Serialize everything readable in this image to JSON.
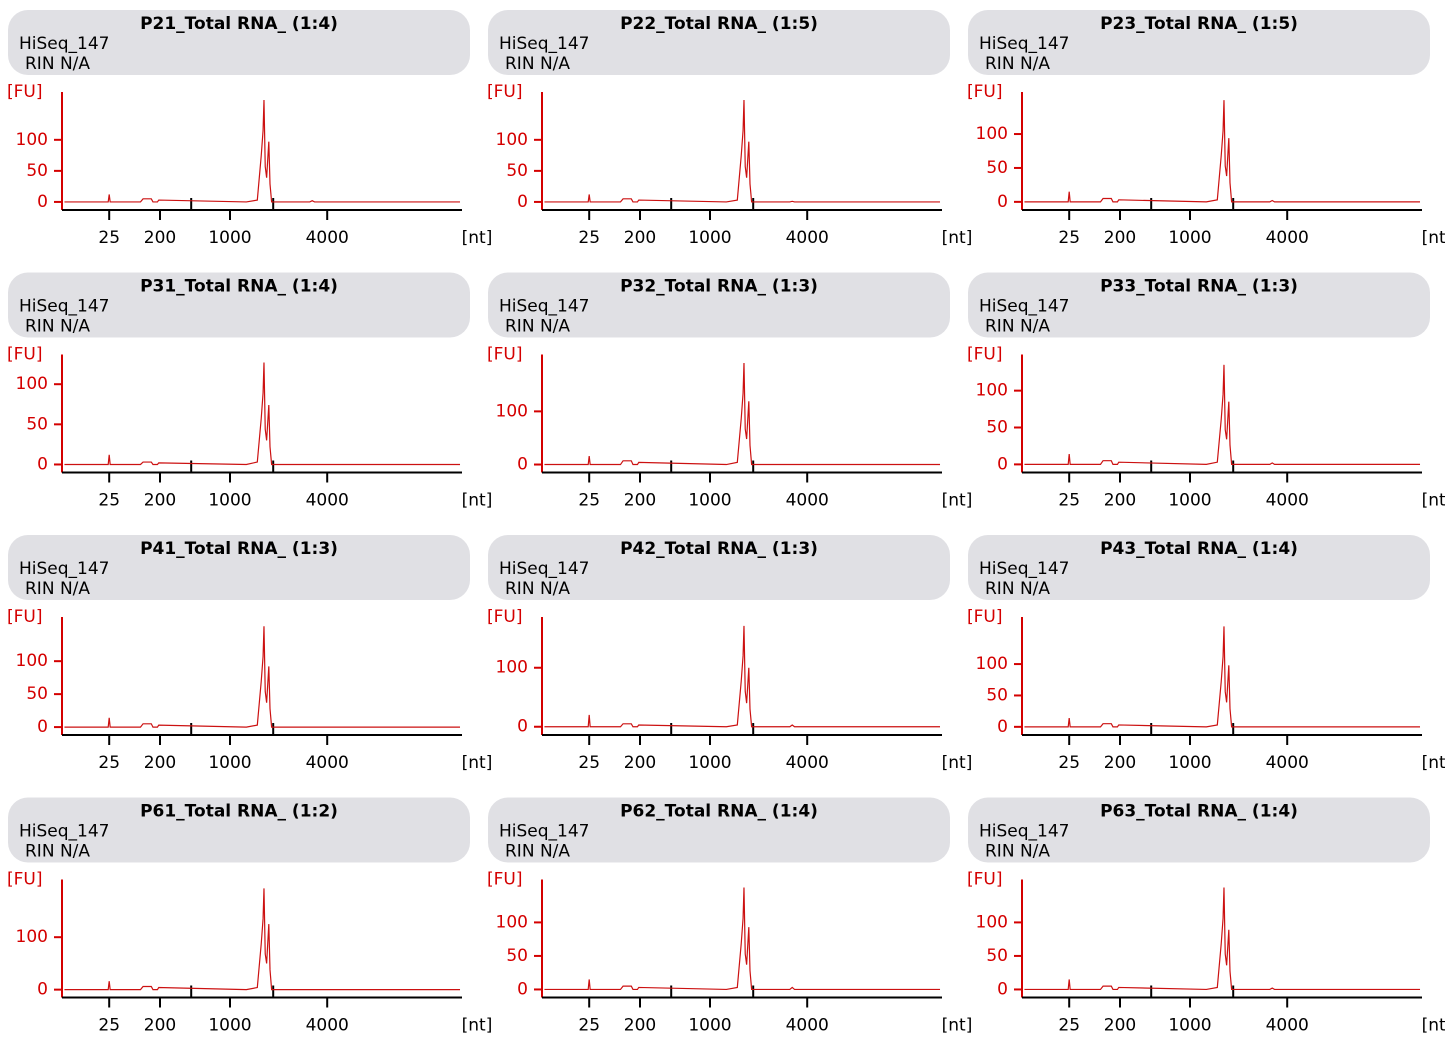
{
  "chart_data": [
    {
      "type": "line",
      "title": "P21_Total RNA_ (1:4)",
      "subtitle": [
        "HiSeq_147",
        "RIN N/A"
      ],
      "ylabel": "[FU]",
      "xlabel": "[nt]",
      "color": "#cc1111",
      "ylim": [
        -13,
        177
      ],
      "yticks": [
        0,
        50,
        100
      ],
      "xticks": [
        25,
        200,
        1000,
        4000
      ],
      "xminor": [
        500,
        2000
      ],
      "x": [
        4,
        24,
        25,
        26,
        90,
        100,
        140,
        150,
        180,
        190,
        1300,
        1550,
        1650,
        1700,
        1725,
        1760,
        1800,
        1864,
        1900,
        1950,
        3200,
        3300,
        3400,
        22000
      ],
      "values": [
        0,
        0,
        12,
        0,
        0,
        5,
        5,
        0,
        0,
        3,
        0,
        3,
        74,
        115,
        164,
        57,
        39,
        97,
        29,
        0,
        0,
        2,
        0,
        0
      ]
    },
    {
      "type": "line",
      "title": "P22_Total RNA_ (1:5)",
      "subtitle": [
        "HiSeq_147",
        "RIN N/A"
      ],
      "ylabel": "[FU]",
      "xlabel": "[nt]",
      "color": "#cc1111",
      "ylim": [
        -13,
        177
      ],
      "yticks": [
        0,
        50,
        100
      ],
      "xticks": [
        25,
        200,
        1000,
        4000
      ],
      "xminor": [
        500,
        2000
      ],
      "x": [
        4,
        24,
        25,
        26,
        90,
        100,
        140,
        150,
        180,
        190,
        1300,
        1550,
        1650,
        1700,
        1725,
        1760,
        1800,
        1864,
        1900,
        1950,
        3200,
        3300,
        3400,
        22000
      ],
      "values": [
        0,
        0,
        12,
        0,
        0,
        5,
        5,
        0,
        0,
        3,
        0,
        3,
        74,
        115,
        164,
        57,
        39,
        97,
        29,
        0,
        0,
        1,
        0,
        0
      ]
    },
    {
      "type": "line",
      "title": "P23_Total RNA_ (1:5)",
      "subtitle": [
        "HiSeq_147",
        "RIN N/A"
      ],
      "ylabel": "[FU]",
      "xlabel": "[nt]",
      "color": "#cc1111",
      "ylim": [
        -12,
        162
      ],
      "yticks": [
        0,
        50,
        100
      ],
      "xticks": [
        25,
        200,
        1000,
        4000
      ],
      "xminor": [
        500,
        2000
      ],
      "x": [
        4,
        24,
        25,
        26,
        90,
        100,
        140,
        150,
        180,
        190,
        1300,
        1550,
        1650,
        1700,
        1725,
        1760,
        1800,
        1864,
        1900,
        1950,
        3200,
        3300,
        3400,
        22000
      ],
      "values": [
        0,
        0,
        15,
        0,
        0,
        5,
        5,
        0,
        0,
        3,
        0,
        3,
        68,
        105,
        150,
        53,
        38,
        94,
        28,
        0,
        0,
        2,
        0,
        0
      ]
    },
    {
      "type": "line",
      "title": "P31_Total RNA_ (1:4)",
      "subtitle": [
        "HiSeq_147",
        "RIN N/A"
      ],
      "ylabel": "[FU]",
      "xlabel": "[nt]",
      "color": "#cc1111",
      "ylim": [
        -10,
        137
      ],
      "yticks": [
        0,
        50,
        100
      ],
      "xticks": [
        25,
        200,
        1000,
        4000
      ],
      "xminor": [
        500,
        2000
      ],
      "x": [
        4,
        24,
        25,
        26,
        90,
        100,
        140,
        150,
        180,
        190,
        1300,
        1550,
        1650,
        1700,
        1725,
        1760,
        1800,
        1864,
        1900,
        1950,
        3200,
        3300,
        3400,
        22000
      ],
      "values": [
        0,
        0,
        12,
        0,
        0,
        3,
        3,
        0,
        0,
        2,
        0,
        3,
        57,
        89,
        127,
        44,
        30,
        74,
        22,
        0,
        0,
        0,
        0,
        0
      ]
    },
    {
      "type": "line",
      "title": "P32_Total RNA_ (1:3)",
      "subtitle": [
        "HiSeq_147",
        "RIN N/A"
      ],
      "ylabel": "[FU]",
      "xlabel": "[nt]",
      "color": "#cc1111",
      "ylim": [
        -15,
        207
      ],
      "yticks": [
        0,
        100
      ],
      "xticks": [
        25,
        200,
        1000,
        4000
      ],
      "xminor": [
        500,
        2000
      ],
      "x": [
        4,
        24,
        25,
        26,
        90,
        100,
        140,
        150,
        180,
        190,
        1300,
        1550,
        1650,
        1700,
        1725,
        1760,
        1800,
        1864,
        1900,
        1950,
        3200,
        3300,
        3400,
        22000
      ],
      "values": [
        0,
        0,
        16,
        0,
        0,
        7,
        7,
        0,
        0,
        4,
        0,
        4,
        86,
        134,
        191,
        67,
        48,
        119,
        36,
        0,
        0,
        0,
        0,
        0
      ]
    },
    {
      "type": "line",
      "title": "P33_Total RNA_ (1:3)",
      "subtitle": [
        "HiSeq_147",
        "RIN N/A"
      ],
      "ylabel": "[FU]",
      "xlabel": "[nt]",
      "color": "#cc1111",
      "ylim": [
        -11,
        149
      ],
      "yticks": [
        0,
        50,
        100
      ],
      "xticks": [
        25,
        200,
        1000,
        4000
      ],
      "xminor": [
        500,
        2000
      ],
      "x": [
        4,
        24,
        25,
        26,
        90,
        100,
        140,
        150,
        180,
        190,
        1300,
        1550,
        1650,
        1700,
        1725,
        1760,
        1800,
        1864,
        1900,
        1950,
        3200,
        3300,
        3400,
        22000
      ],
      "values": [
        0,
        0,
        14,
        0,
        0,
        5,
        5,
        0,
        0,
        3,
        0,
        3,
        61,
        95,
        135,
        47,
        34,
        85,
        26,
        0,
        0,
        2,
        0,
        0
      ]
    },
    {
      "type": "line",
      "title": "P41_Total RNA_ (1:3)",
      "subtitle": [
        "HiSeq_147",
        "RIN N/A"
      ],
      "ylabel": "[FU]",
      "xlabel": "[nt]",
      "color": "#cc1111",
      "ylim": [
        -12,
        167
      ],
      "yticks": [
        0,
        50,
        100
      ],
      "xticks": [
        25,
        200,
        1000,
        4000
      ],
      "xminor": [
        500,
        2000
      ],
      "x": [
        4,
        24,
        25,
        26,
        90,
        100,
        140,
        150,
        180,
        190,
        1300,
        1550,
        1650,
        1700,
        1725,
        1760,
        1800,
        1864,
        1900,
        1950,
        3200,
        3300,
        3400,
        22000
      ],
      "values": [
        0,
        0,
        14,
        0,
        0,
        5,
        5,
        0,
        0,
        3,
        0,
        3,
        69,
        107,
        153,
        54,
        37,
        92,
        28,
        0,
        0,
        0,
        0,
        0
      ]
    },
    {
      "type": "line",
      "title": "P42_Total RNA_ (1:3)",
      "subtitle": [
        "HiSeq_147",
        "RIN N/A"
      ],
      "ylabel": "[FU]",
      "xlabel": "[nt]",
      "color": "#cc1111",
      "ylim": [
        -14,
        186
      ],
      "yticks": [
        0,
        100
      ],
      "xticks": [
        25,
        200,
        1000,
        4000
      ],
      "xminor": [
        500,
        2000
      ],
      "x": [
        4,
        24,
        25,
        26,
        90,
        100,
        140,
        150,
        180,
        190,
        1300,
        1550,
        1650,
        1700,
        1725,
        1760,
        1800,
        1864,
        1900,
        1950,
        3200,
        3300,
        3400,
        22000
      ],
      "values": [
        0,
        0,
        20,
        0,
        0,
        5,
        5,
        0,
        0,
        3,
        0,
        3,
        77,
        120,
        171,
        60,
        40,
        100,
        30,
        0,
        0,
        3,
        0,
        0
      ]
    },
    {
      "type": "line",
      "title": "P43_Total RNA_ (1:4)",
      "subtitle": [
        "HiSeq_147",
        "RIN N/A"
      ],
      "ylabel": "[FU]",
      "xlabel": "[nt]",
      "color": "#cc1111",
      "ylim": [
        -13,
        175
      ],
      "yticks": [
        0,
        50,
        100
      ],
      "xticks": [
        25,
        200,
        1000,
        4000
      ],
      "xminor": [
        500,
        2000
      ],
      "x": [
        4,
        24,
        25,
        26,
        90,
        100,
        140,
        150,
        180,
        190,
        1300,
        1550,
        1650,
        1700,
        1725,
        1760,
        1800,
        1864,
        1900,
        1950,
        3200,
        3300,
        3400,
        22000
      ],
      "values": [
        0,
        0,
        14,
        0,
        0,
        5,
        5,
        0,
        0,
        3,
        0,
        3,
        72,
        112,
        160,
        56,
        39,
        98,
        29,
        0,
        0,
        0,
        0,
        0
      ]
    },
    {
      "type": "line",
      "title": "P61_Total RNA_ (1:2)",
      "subtitle": [
        "HiSeq_147",
        "RIN N/A"
      ],
      "ylabel": "[FU]",
      "xlabel": "[nt]",
      "color": "#cc1111",
      "ylim": [
        -15,
        210
      ],
      "yticks": [
        0,
        100
      ],
      "xticks": [
        25,
        200,
        1000,
        4000
      ],
      "xminor": [
        500,
        2000
      ],
      "x": [
        4,
        24,
        25,
        26,
        90,
        100,
        140,
        150,
        180,
        190,
        1300,
        1550,
        1650,
        1700,
        1725,
        1760,
        1800,
        1864,
        1900,
        1950,
        3200,
        3300,
        3400,
        22000
      ],
      "values": [
        0,
        0,
        16,
        0,
        0,
        6,
        6,
        0,
        0,
        4,
        0,
        4,
        87,
        135,
        193,
        68,
        50,
        125,
        38,
        0,
        0,
        0,
        0,
        0
      ]
    },
    {
      "type": "line",
      "title": "P62_Total RNA_ (1:4)",
      "subtitle": [
        "HiSeq_147",
        "RIN N/A"
      ],
      "ylabel": "[FU]",
      "xlabel": "[nt]",
      "color": "#cc1111",
      "ylim": [
        -12,
        164
      ],
      "yticks": [
        0,
        50,
        100
      ],
      "xticks": [
        25,
        200,
        1000,
        4000
      ],
      "xminor": [
        500,
        2000
      ],
      "x": [
        4,
        24,
        25,
        26,
        90,
        100,
        140,
        150,
        180,
        190,
        1300,
        1550,
        1650,
        1700,
        1725,
        1760,
        1800,
        1864,
        1900,
        1950,
        3200,
        3300,
        3400,
        22000
      ],
      "values": [
        0,
        0,
        15,
        0,
        0,
        5,
        5,
        0,
        0,
        3,
        0,
        3,
        68,
        106,
        152,
        53,
        37,
        93,
        28,
        0,
        0,
        3,
        0,
        0
      ]
    },
    {
      "type": "line",
      "title": "P63_Total RNA_ (1:4)",
      "subtitle": [
        "HiSeq_147",
        "RIN N/A"
      ],
      "ylabel": "[FU]",
      "xlabel": "[nt]",
      "color": "#cc1111",
      "ylim": [
        -12,
        164
      ],
      "yticks": [
        0,
        50,
        100
      ],
      "xticks": [
        25,
        200,
        1000,
        4000
      ],
      "xminor": [
        500,
        2000
      ],
      "x": [
        4,
        24,
        25,
        26,
        90,
        100,
        140,
        150,
        180,
        190,
        1300,
        1550,
        1650,
        1700,
        1725,
        1760,
        1800,
        1864,
        1900,
        1950,
        3200,
        3300,
        3400,
        22000
      ],
      "values": [
        0,
        0,
        15,
        0,
        0,
        5,
        5,
        0,
        0,
        3,
        0,
        3,
        68,
        106,
        152,
        53,
        36,
        89,
        27,
        0,
        0,
        2,
        0,
        0
      ]
    }
  ]
}
